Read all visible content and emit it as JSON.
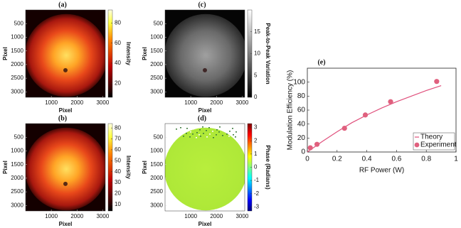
{
  "chart_data": [
    {
      "type": "image",
      "label": "(a)",
      "xlabel": "Pixel",
      "ylabel": "Pixel",
      "colormap": "hot",
      "xlim": [
        0,
        3100
      ],
      "ylim": [
        0,
        3200
      ],
      "xticks": [
        1000,
        2000,
        3000
      ],
      "yticks": [
        500,
        1000,
        1500,
        2000,
        2500,
        3000
      ],
      "colorbar": {
        "label": "Intensity",
        "lim": [
          6,
          93
        ],
        "ticks": [
          20,
          40,
          60,
          80
        ]
      }
    },
    {
      "type": "image",
      "label": "(b)",
      "xlabel": "Pixel",
      "ylabel": "Pixel",
      "colormap": "hot",
      "xlim": [
        0,
        3100
      ],
      "ylim": [
        0,
        3200
      ],
      "xticks": [
        1000,
        2000,
        3000
      ],
      "yticks": [
        500,
        1000,
        1500,
        2000,
        2500,
        3000
      ],
      "colorbar": {
        "label": "Intensity",
        "lim": [
          4,
          84
        ],
        "ticks": [
          10,
          20,
          30,
          40,
          50,
          60,
          70,
          80
        ]
      }
    },
    {
      "type": "image",
      "label": "(c)",
      "xlabel": "Pixel",
      "ylabel": "Pixel",
      "colormap": "gray",
      "xlim": [
        0,
        3100
      ],
      "ylim": [
        0,
        3200
      ],
      "xticks": [
        1000,
        2000,
        3000
      ],
      "yticks": [
        500,
        1000,
        1500,
        2000,
        2500,
        3000
      ],
      "colorbar": {
        "label": "Peak-to-Peak Variation",
        "lim": [
          0,
          20
        ],
        "ticks": [
          0,
          5,
          10,
          15
        ]
      }
    },
    {
      "type": "image",
      "label": "(d)",
      "xlabel": "Pixel",
      "ylabel": "Pixel",
      "colormap": "jet",
      "xlim": [
        0,
        3100
      ],
      "ylim": [
        0,
        3200
      ],
      "xticks": [
        1000,
        2000,
        3000
      ],
      "yticks": [
        500,
        1000,
        1500,
        2000,
        2500,
        3000
      ],
      "colorbar": {
        "label": "Phase (Radians)",
        "lim": [
          -3.3,
          3.3
        ],
        "ticks": [
          -3,
          -2,
          -1,
          0,
          1,
          2,
          3
        ]
      }
    },
    {
      "type": "line",
      "label": "(e)",
      "xlabel": "RF Power (W)",
      "ylabel": "Modulation Efficiency (%)",
      "xlim": [
        0,
        1
      ],
      "ylim": [
        0,
        120
      ],
      "xticks": [
        0,
        0.2,
        0.4,
        0.6,
        0.8,
        1
      ],
      "yticks": [
        0,
        20,
        40,
        60,
        80,
        100
      ],
      "legend": "lower right",
      "series": [
        {
          "name": "Theory",
          "color": "#e0507c",
          "style": "line",
          "x": [
            0,
            0.1,
            0.2,
            0.3,
            0.4,
            0.5,
            0.6,
            0.7,
            0.8,
            0.9
          ],
          "values": [
            0,
            15,
            29,
            42,
            53,
            63,
            72,
            80,
            88,
            95
          ]
        },
        {
          "name": "Experiment",
          "color": "#e0607e",
          "style": "marker",
          "x": [
            0.02,
            0.065,
            0.25,
            0.39,
            0.56,
            0.87
          ],
          "values": [
            6,
            11,
            34,
            53,
            72,
            101
          ]
        }
      ]
    }
  ]
}
